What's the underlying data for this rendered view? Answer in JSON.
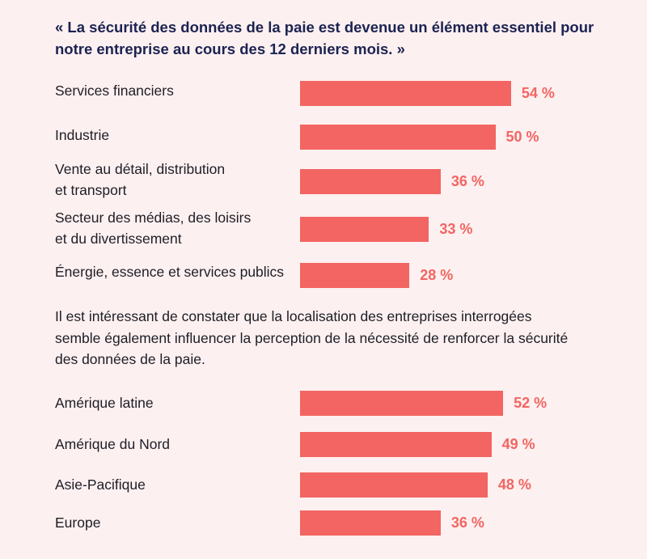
{
  "quote": "« La sécurité des données de la paie est devenue un élément essentiel pour notre entreprise au cours des 12 derniers mois. »",
  "paragraph": "Il est intéressant de constater que la localisation des entreprises interrogées semble également influencer la perception de la nécessité de renforcer la sécurité des données de la paie.",
  "colors": {
    "background": "#fdf0f0",
    "bar": "#f26562",
    "value_text": "#f26562",
    "title_text": "#1b2352",
    "body_text": "#1d1d26"
  },
  "chart_data": [
    {
      "type": "bar",
      "orientation": "horizontal",
      "title": "",
      "unit": "%",
      "categories": [
        [
          "Services financiers"
        ],
        [
          "Industrie"
        ],
        [
          "Vente au détail, distribution",
          "et transport"
        ],
        [
          "Secteur des médias, des loisirs",
          "et du divertissement"
        ],
        [
          "Énergie, essence et services publics"
        ]
      ],
      "values": [
        54,
        50,
        36,
        33,
        28
      ],
      "value_labels": [
        "54 %",
        "50 %",
        "36 %",
        "33 %",
        "28 %"
      ],
      "xlim": [
        0,
        100
      ]
    },
    {
      "type": "bar",
      "orientation": "horizontal",
      "title": "",
      "unit": "%",
      "categories": [
        [
          "Amérique latine"
        ],
        [
          "Amérique du Nord"
        ],
        [
          "Asie-Pacifique"
        ],
        [
          "Europe"
        ]
      ],
      "values": [
        52,
        49,
        48,
        36
      ],
      "value_labels": [
        "52 %",
        "49 %",
        "48 %",
        "36 %"
      ],
      "xlim": [
        0,
        100
      ]
    }
  ]
}
